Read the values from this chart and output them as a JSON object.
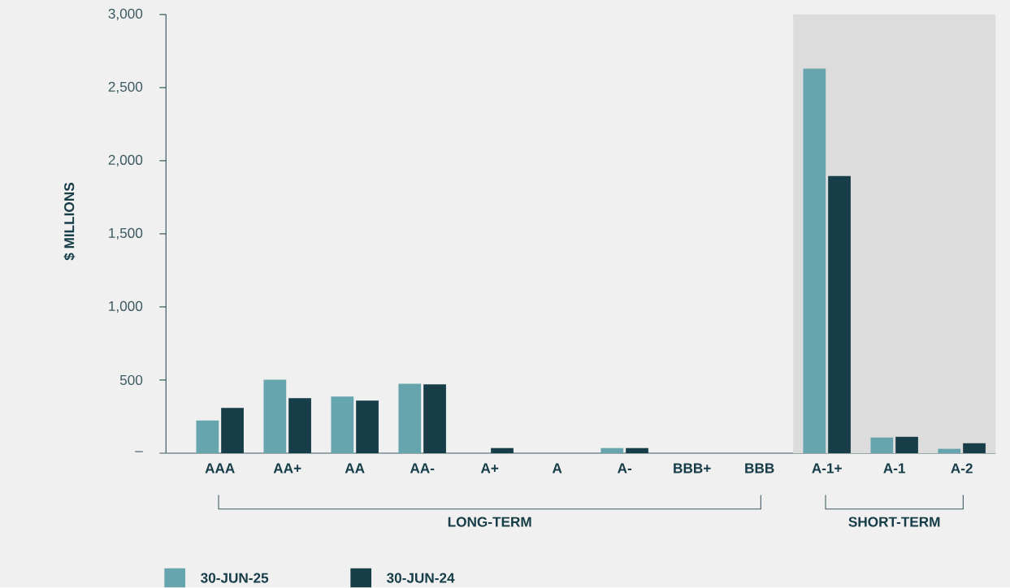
{
  "chart_data": {
    "type": "bar",
    "ylabel": "$ MILLIONS",
    "categories": [
      "AAA",
      "AA+",
      "AA",
      "AA-",
      "A+",
      "A",
      "A-",
      "BBB+",
      "BBB",
      "A-1+",
      "A-1",
      "A-2"
    ],
    "series": [
      {
        "name": "30-JUN-25",
        "color": "#67a5ae",
        "values": [
          224,
          503,
          387,
          475,
          0,
          0,
          35,
          0,
          0,
          2630,
          107,
          30
        ]
      },
      {
        "name": "30-JUN-24",
        "color": "#163d48",
        "values": [
          310,
          376,
          359,
          470,
          35,
          0,
          35,
          0,
          0,
          1895,
          112,
          68
        ]
      }
    ],
    "ylim": [
      0,
      3000
    ],
    "yticks": [
      {
        "value": 0,
        "label": "–"
      },
      {
        "value": 500,
        "label": "500"
      },
      {
        "value": 1000,
        "label": "1,000"
      },
      {
        "value": 1500,
        "label": "1,500"
      },
      {
        "value": 2000,
        "label": "2,000"
      },
      {
        "value": 2500,
        "label": "2,500"
      },
      {
        "value": 3000,
        "label": "3,000"
      }
    ],
    "bands": [
      {
        "axis": "x",
        "from": "A-1+",
        "to": "A-2",
        "color": "#dcdcdc"
      }
    ],
    "annotations": [
      "LONG-TERM",
      "SHORT-TERM"
    ],
    "legend": "bottom left",
    "grid": false
  }
}
